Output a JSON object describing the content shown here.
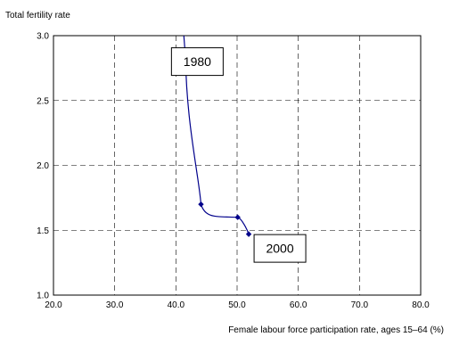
{
  "chart_data": {
    "type": "line",
    "xlabel": "Female labour force participation rate, ages 15–64 (%)",
    "ylabel": "Total fertility rate",
    "xlim": [
      20,
      80
    ],
    "ylim": [
      1.0,
      3.0
    ],
    "x_ticks": [
      "20.0",
      "30.0",
      "40.0",
      "50.0",
      "60.0",
      "70.0",
      "80.0"
    ],
    "y_ticks": [
      "1.0",
      "1.5",
      "2.0",
      "2.5",
      "3.0"
    ],
    "grid": true,
    "series": [
      {
        "color": "#00008b",
        "points": [
          {
            "x": 41.6,
            "y": 2.8
          },
          {
            "x": 44.1,
            "y": 1.7
          },
          {
            "x": 50.1,
            "y": 1.6
          },
          {
            "x": 51.9,
            "y": 1.47
          }
        ],
        "curve_extends_above_top_at_x": 41.3
      }
    ],
    "annotations": [
      {
        "text": "1980",
        "x": 43.5,
        "y": 2.8
      },
      {
        "text": "2000",
        "x": 57.0,
        "y": 1.36
      }
    ]
  }
}
